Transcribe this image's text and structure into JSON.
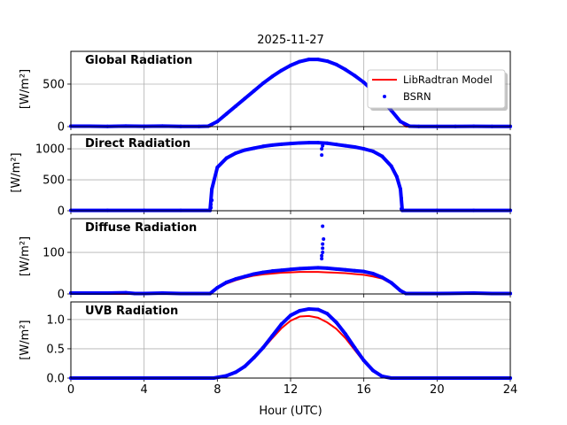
{
  "chart_data": {
    "type": "line",
    "title": "2025-11-27",
    "xlabel": "Hour (UTC)",
    "xlim": [
      0,
      24
    ],
    "xticks": [
      0,
      4,
      8,
      12,
      16,
      20,
      24
    ],
    "grid": true,
    "legend": {
      "placement": "top-right",
      "entries": [
        {
          "label": "LibRadtran Model",
          "color": "#ff0000",
          "style": "line"
        },
        {
          "label": "BSRN",
          "color": "#0000ff",
          "style": "dot"
        }
      ]
    },
    "title_color": "#ffa500",
    "panels": [
      {
        "name": "Global Radiation",
        "ylabel": "[W/m²]",
        "ylim": [
          0,
          885
        ],
        "yticks": [
          0,
          500
        ],
        "model": [
          [
            0,
            0
          ],
          [
            7.6,
            0
          ],
          [
            8,
            55
          ],
          [
            8.5,
            145
          ],
          [
            9,
            235
          ],
          [
            9.5,
            325
          ],
          [
            10,
            415
          ],
          [
            10.5,
            505
          ],
          [
            11,
            585
          ],
          [
            11.5,
            655
          ],
          [
            12,
            715
          ],
          [
            12.5,
            760
          ],
          [
            13,
            785
          ],
          [
            13.5,
            785
          ],
          [
            14,
            765
          ],
          [
            14.5,
            725
          ],
          [
            15,
            665
          ],
          [
            15.5,
            595
          ],
          [
            16,
            515
          ],
          [
            16.5,
            415
          ],
          [
            17,
            305
          ],
          [
            17.5,
            185
          ],
          [
            18,
            55
          ],
          [
            18.3,
            0
          ],
          [
            24,
            0
          ]
        ],
        "bsrn": [
          [
            0,
            5
          ],
          [
            1,
            5
          ],
          [
            2,
            3
          ],
          [
            3,
            6
          ],
          [
            4,
            4
          ],
          [
            5,
            6
          ],
          [
            6,
            3
          ],
          [
            7,
            3
          ],
          [
            7.5,
            5
          ],
          [
            8,
            60
          ],
          [
            8.5,
            150
          ],
          [
            9,
            240
          ],
          [
            9.5,
            330
          ],
          [
            10,
            420
          ],
          [
            10.5,
            510
          ],
          [
            11,
            590
          ],
          [
            11.5,
            660
          ],
          [
            12,
            720
          ],
          [
            12.5,
            765
          ],
          [
            13,
            790
          ],
          [
            13.5,
            790
          ],
          [
            14,
            770
          ],
          [
            14.5,
            730
          ],
          [
            15,
            670
          ],
          [
            15.5,
            600
          ],
          [
            16,
            520
          ],
          [
            16.5,
            420
          ],
          [
            17,
            310
          ],
          [
            17.5,
            190
          ],
          [
            18,
            60
          ],
          [
            18.5,
            5
          ],
          [
            19,
            3
          ],
          [
            20,
            3
          ],
          [
            21,
            3
          ],
          [
            22,
            4
          ],
          [
            23,
            3
          ],
          [
            24,
            3
          ]
        ],
        "outliers": []
      },
      {
        "name": "Direct Radiation",
        "ylabel": "[W/m²]",
        "ylim": [
          0,
          1230
        ],
        "yticks": [
          0,
          500,
          1000
        ],
        "model": [
          [
            7.7,
            340
          ],
          [
            8,
            700
          ],
          [
            8.5,
            850
          ],
          [
            9,
            930
          ],
          [
            9.5,
            980
          ],
          [
            10,
            1010
          ],
          [
            10.5,
            1040
          ],
          [
            11,
            1060
          ],
          [
            11.5,
            1075
          ],
          [
            12,
            1085
          ],
          [
            12.5,
            1095
          ],
          [
            13,
            1100
          ],
          [
            13.5,
            1100
          ],
          [
            14,
            1090
          ],
          [
            14.5,
            1070
          ],
          [
            15,
            1050
          ],
          [
            15.5,
            1030
          ],
          [
            16,
            1000
          ],
          [
            16.5,
            960
          ],
          [
            17,
            880
          ],
          [
            17.5,
            720
          ],
          [
            17.8,
            550
          ],
          [
            18,
            350
          ]
        ],
        "bsrn": [
          [
            0,
            5
          ],
          [
            2,
            5
          ],
          [
            4,
            5
          ],
          [
            6,
            5
          ],
          [
            7.6,
            5
          ],
          [
            7.7,
            350
          ],
          [
            8,
            700
          ],
          [
            8.5,
            850
          ],
          [
            9,
            930
          ],
          [
            9.5,
            980
          ],
          [
            10,
            1010
          ],
          [
            10.5,
            1040
          ],
          [
            11,
            1060
          ],
          [
            11.5,
            1075
          ],
          [
            12,
            1085
          ],
          [
            12.5,
            1095
          ],
          [
            13,
            1100
          ],
          [
            13.5,
            1100
          ],
          [
            14,
            1090
          ],
          [
            14.5,
            1070
          ],
          [
            15,
            1050
          ],
          [
            15.5,
            1030
          ],
          [
            16,
            1000
          ],
          [
            16.5,
            960
          ],
          [
            17,
            880
          ],
          [
            17.5,
            720
          ],
          [
            17.8,
            550
          ],
          [
            18,
            350
          ],
          [
            18.1,
            5
          ],
          [
            20,
            5
          ],
          [
            22,
            5
          ],
          [
            24,
            5
          ]
        ],
        "outliers": [
          [
            7.65,
            50
          ],
          [
            7.65,
            100
          ],
          [
            7.7,
            170
          ],
          [
            13.7,
            900
          ],
          [
            13.7,
            1000
          ],
          [
            13.75,
            1050
          ],
          [
            18.05,
            200
          ],
          [
            18.05,
            30
          ]
        ]
      },
      {
        "name": "Diffuse Radiation",
        "ylabel": "[W/m²]",
        "ylim": [
          0,
          181
        ],
        "yticks": [
          0,
          100
        ],
        "model": [
          [
            0,
            0
          ],
          [
            7.6,
            0
          ],
          [
            8,
            14
          ],
          [
            8.5,
            25
          ],
          [
            9,
            33
          ],
          [
            9.5,
            39
          ],
          [
            10,
            44
          ],
          [
            10.5,
            47
          ],
          [
            11,
            49
          ],
          [
            11.5,
            51
          ],
          [
            12,
            52
          ],
          [
            12.5,
            53
          ],
          [
            13,
            53
          ],
          [
            13.5,
            53
          ],
          [
            14,
            52
          ],
          [
            14.5,
            51
          ],
          [
            15,
            50
          ],
          [
            15.5,
            48
          ],
          [
            16,
            46
          ],
          [
            16.5,
            42
          ],
          [
            17,
            37
          ],
          [
            17.5,
            25
          ],
          [
            18,
            7
          ],
          [
            18.3,
            0
          ],
          [
            24,
            0
          ]
        ],
        "bsrn": [
          [
            0,
            2
          ],
          [
            1,
            2
          ],
          [
            2,
            2
          ],
          [
            3,
            3
          ],
          [
            3.5,
            1
          ],
          [
            4,
            1
          ],
          [
            5,
            2
          ],
          [
            6,
            1
          ],
          [
            7,
            1
          ],
          [
            7.6,
            1
          ],
          [
            8,
            15
          ],
          [
            8.5,
            28
          ],
          [
            9,
            36
          ],
          [
            9.5,
            42
          ],
          [
            10,
            48
          ],
          [
            10.5,
            52
          ],
          [
            11,
            55
          ],
          [
            11.5,
            57
          ],
          [
            12,
            59
          ],
          [
            12.5,
            61
          ],
          [
            13,
            62
          ],
          [
            13.5,
            63
          ],
          [
            14,
            62
          ],
          [
            14.5,
            60
          ],
          [
            15,
            58
          ],
          [
            15.5,
            56
          ],
          [
            16,
            54
          ],
          [
            16.5,
            49
          ],
          [
            17,
            40
          ],
          [
            17.5,
            27
          ],
          [
            18,
            8
          ],
          [
            18.3,
            1
          ],
          [
            20,
            1
          ],
          [
            22,
            2
          ],
          [
            23,
            1
          ],
          [
            24,
            1
          ]
        ],
        "outliers": [
          [
            13.7,
            85
          ],
          [
            13.7,
            92
          ],
          [
            13.75,
            100
          ],
          [
            13.75,
            110
          ],
          [
            13.75,
            120
          ],
          [
            13.8,
            132
          ],
          [
            13.75,
            163
          ]
        ]
      },
      {
        "name": "UVB Radiation",
        "ylabel": "[W/m²]",
        "ylim": [
          0,
          1.3
        ],
        "yticks": [
          0.0,
          0.5,
          1.0
        ],
        "model": [
          [
            0,
            0
          ],
          [
            7.8,
            0
          ],
          [
            8.5,
            0.04
          ],
          [
            9,
            0.1
          ],
          [
            9.5,
            0.2
          ],
          [
            10,
            0.34
          ],
          [
            10.5,
            0.5
          ],
          [
            11,
            0.68
          ],
          [
            11.5,
            0.85
          ],
          [
            12,
            0.98
          ],
          [
            12.5,
            1.05
          ],
          [
            13,
            1.06
          ],
          [
            13.5,
            1.03
          ],
          [
            14,
            0.95
          ],
          [
            14.5,
            0.84
          ],
          [
            15,
            0.68
          ],
          [
            15.5,
            0.48
          ],
          [
            16,
            0.28
          ],
          [
            16.5,
            0.12
          ],
          [
            17,
            0.03
          ],
          [
            17.5,
            0
          ],
          [
            24,
            0
          ]
        ],
        "bsrn": [
          [
            0,
            0
          ],
          [
            7.8,
            0
          ],
          [
            8.5,
            0.04
          ],
          [
            9,
            0.1
          ],
          [
            9.5,
            0.2
          ],
          [
            10,
            0.35
          ],
          [
            10.5,
            0.52
          ],
          [
            11,
            0.72
          ],
          [
            11.5,
            0.92
          ],
          [
            12,
            1.07
          ],
          [
            12.5,
            1.15
          ],
          [
            13,
            1.18
          ],
          [
            13.5,
            1.17
          ],
          [
            14,
            1.1
          ],
          [
            14.5,
            0.95
          ],
          [
            15,
            0.75
          ],
          [
            15.5,
            0.52
          ],
          [
            16,
            0.3
          ],
          [
            16.5,
            0.13
          ],
          [
            17,
            0.03
          ],
          [
            17.5,
            0
          ],
          [
            24,
            0
          ]
        ],
        "outliers": []
      }
    ]
  }
}
